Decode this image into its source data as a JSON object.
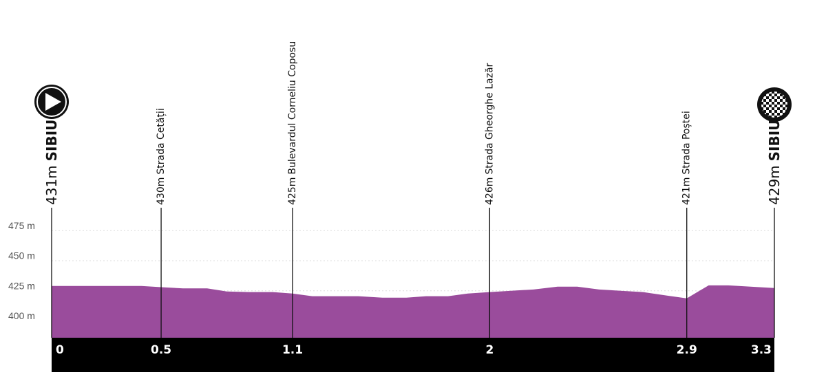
{
  "chart_data": {
    "type": "area",
    "color": "#9a4c9c",
    "x": [
      0,
      0.41,
      0.5,
      0.6,
      0.71,
      0.8,
      0.9,
      1.01,
      1.1,
      1.19,
      1.4,
      1.51,
      1.62,
      1.71,
      1.81,
      1.9,
      2.0,
      2.2,
      2.31,
      2.4,
      2.5,
      2.7,
      2.81,
      2.9,
      3.0,
      3.09,
      3.3
    ],
    "values": [
      429,
      429,
      428,
      427,
      427,
      424.4,
      423.9,
      423.9,
      422.7,
      420.5,
      420.5,
      419.3,
      419.3,
      420.5,
      420.5,
      422.7,
      423.9,
      426.1,
      428.4,
      428.4,
      426.1,
      423.9,
      421,
      418.75,
      429.5,
      429.5,
      427.3
    ],
    "xlim": [
      0,
      3.3
    ],
    "xticks": [
      0,
      0.5,
      1.1,
      2,
      2.9,
      3.3
    ],
    "ylim": [
      386,
      490
    ],
    "yticks": [
      {
        "value": 400,
        "label": "400 m"
      },
      {
        "value": 425,
        "label": "425 m"
      },
      {
        "value": 450,
        "label": "450 m"
      },
      {
        "value": 475,
        "label": "475 m"
      }
    ],
    "grid": true,
    "waypoints": [
      {
        "elevation": "431m",
        "name": "SIBIU"
      },
      {
        "elevation": "430m",
        "name": "Strada Cetății"
      },
      {
        "elevation": "425m",
        "name": "Bulevardul Corneliu Coposu"
      },
      {
        "elevation": "426m",
        "name": "Strada Gheorghe Lazăr"
      },
      {
        "elevation": "421m",
        "name": "Strada Poștei"
      },
      {
        "elevation": "429m",
        "name": "SIBIU"
      }
    ]
  }
}
